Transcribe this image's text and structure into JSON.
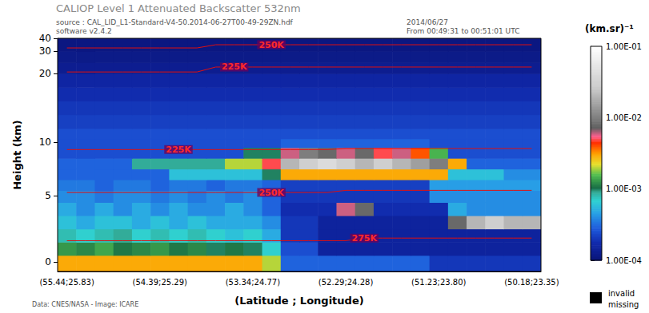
{
  "chart_data": {
    "type": "heatmap",
    "title": "CALIOP Level 1 Attenuated Backscatter 532nm",
    "subtitle": [
      "source : CAL_LID_L1-Standard-V4-50.2014-06-27T00-49-29ZN.hdf",
      "software v2.4.2"
    ],
    "date_text": [
      "2014/06/27",
      "From 00:49:31 to 00:51:01 UTC"
    ],
    "credit": "Data: CNES/NASA - Image: ICARE",
    "x_label": "(Latitude ; Longitude)",
    "y_label": "Height (km)",
    "categories": [
      "(55.44;25.83)",
      null,
      null,
      null,
      null,
      "(54.39;25.29)",
      null,
      null,
      null,
      null,
      "(53.34;24.77)",
      null,
      null,
      null,
      null,
      "(52.29;24.28)",
      null,
      null,
      null,
      null,
      "(51.23;23.80)",
      null,
      null,
      null,
      null,
      "(50.18;23.35)"
    ],
    "ylim": [
      -0.5,
      40
    ],
    "yticks": [
      0,
      5,
      10,
      20,
      30,
      40
    ],
    "y_edges": [
      -0.5,
      0.5,
      1.5,
      2.5,
      3.5,
      4.5,
      5.5,
      6.5,
      7.5,
      8.5,
      9.5,
      10.5,
      12,
      14,
      16,
      18,
      20,
      25,
      30,
      40
    ],
    "cells": [
      [
        0.003,
        0.003,
        0.003,
        0.003,
        0.003,
        0.003,
        0.003,
        0.003,
        0.003,
        0.003,
        0.003,
        0.002,
        0.0003,
        0.0003,
        0.0003,
        0.0003,
        0.0003,
        0.0003,
        0.0003,
        0.0003,
        0.0002,
        0.0002,
        0.0002,
        0.0002,
        0.0002,
        0.0002
      ],
      [
        0.0013,
        0.0012,
        0.0014,
        0.0011,
        0.0012,
        0.0013,
        0.0011,
        0.0012,
        0.001,
        0.0011,
        0.001,
        0.0007,
        0.00025,
        0.00025,
        0.00015,
        0.00015,
        0.00015,
        0.00015,
        0.00015,
        0.00015,
        0.00015,
        0.00015,
        0.00015,
        0.00015,
        0.00015,
        0.00015
      ],
      [
        0.0008,
        0.0007,
        0.0008,
        0.0009,
        0.0007,
        0.0008,
        0.0007,
        0.0008,
        0.0007,
        0.0006,
        0.0007,
        0.0005,
        0.0002,
        0.0002,
        0.00015,
        0.00015,
        0.00015,
        0.00015,
        0.00015,
        0.00015,
        0.00015,
        0.00015,
        0.00015,
        0.00015,
        0.00015,
        0.00015
      ],
      [
        0.0006,
        0.0005,
        0.0006,
        0.0006,
        0.0005,
        0.0006,
        0.0005,
        0.0006,
        0.0005,
        0.0005,
        0.0005,
        0.0004,
        0.0002,
        0.0002,
        0.00015,
        0.00015,
        0.00015,
        0.00015,
        0.00015,
        0.00015,
        0.00015,
        0.008,
        0.02,
        0.03,
        0.02,
        0.02
      ],
      [
        0.0005,
        0.0004,
        0.0005,
        0.0004,
        0.0005,
        0.0004,
        0.0005,
        0.0004,
        0.0004,
        0.0005,
        0.0004,
        0.0003,
        0.00018,
        0.00018,
        0.00018,
        0.006,
        0.008,
        0.00018,
        0.00018,
        0.00018,
        0.00018,
        0.0005,
        0.0004,
        0.0004,
        0.0004,
        0.0004
      ],
      [
        0.0004,
        0.0004,
        0.00035,
        0.0004,
        0.0004,
        0.00035,
        0.0004,
        0.00035,
        0.0004,
        0.00035,
        0.0004,
        0.0003,
        0.0002,
        0.0002,
        0.0002,
        0.0002,
        0.0002,
        0.0002,
        0.0002,
        0.0002,
        0.0004,
        0.0004,
        0.0004,
        0.0004,
        0.0004,
        0.0004
      ],
      [
        0.00035,
        0.00035,
        0.0003,
        0.00035,
        0.00035,
        0.0003,
        0.00035,
        0.00035,
        0.0003,
        0.00035,
        0.00035,
        0.0003,
        0.00022,
        0.00022,
        0.00022,
        0.00022,
        0.00022,
        0.00022,
        0.00022,
        0.00022,
        0.00045,
        0.00045,
        0.00045,
        0.00045,
        0.00045,
        0.00045
      ],
      [
        0.0003,
        0.0003,
        0.0003,
        0.0003,
        0.0003,
        0.0003,
        0.0006,
        0.0006,
        0.0006,
        0.0006,
        0.0006,
        0.001,
        0.003,
        0.003,
        0.003,
        0.003,
        0.003,
        0.003,
        0.003,
        0.003,
        0.003,
        0.0006,
        0.0006,
        0.0006,
        0.0004,
        0.0004
      ],
      [
        0.0003,
        0.0003,
        0.0003,
        0.0003,
        0.0009,
        0.0009,
        0.0009,
        0.0009,
        0.0009,
        0.002,
        0.002,
        0.005,
        0.02,
        0.03,
        0.04,
        0.03,
        0.02,
        0.03,
        0.02,
        0.015,
        0.01,
        0.003,
        0.0003,
        0.0003,
        0.0003,
        0.0003
      ],
      [
        0.00025,
        0.00025,
        0.00025,
        0.00025,
        0.00025,
        0.00025,
        0.00025,
        0.00025,
        0.00025,
        0.00025,
        0.001,
        0.001,
        0.006,
        0.01,
        0.008,
        0.006,
        0.008,
        0.005,
        0.006,
        0.004,
        0.0015,
        0.00025,
        0.00025,
        0.00025,
        0.00025,
        0.00025
      ],
      [
        0.00025,
        0.00025,
        0.00025,
        0.00025,
        0.00025,
        0.00025,
        0.00025,
        0.00025,
        0.00025,
        0.00025,
        0.00025,
        0.00025,
        0.0003,
        0.0003,
        0.0003,
        0.0003,
        0.0003,
        0.0003,
        0.0003,
        0.0003,
        0.00025,
        0.00025,
        0.00025,
        0.00025,
        0.00025,
        0.00025
      ],
      [
        0.00025,
        0.00025,
        0.00025,
        0.00025,
        0.00025,
        0.00025,
        0.00025,
        0.00025,
        0.00025,
        0.00025,
        0.00025,
        0.00025,
        0.00025,
        0.00025,
        0.00025,
        0.00025,
        0.00025,
        0.00025,
        0.00025,
        0.00025,
        0.00025,
        0.00025,
        0.00025,
        0.00025,
        0.00025,
        0.00025
      ],
      [
        0.00022,
        0.00022,
        0.00022,
        0.00022,
        0.00022,
        0.00022,
        0.00022,
        0.00022,
        0.00022,
        0.00022,
        0.00022,
        0.00022,
        0.00022,
        0.00022,
        0.00022,
        0.00022,
        0.00022,
        0.00022,
        0.00022,
        0.00022,
        0.00022,
        0.00022,
        0.00022,
        0.00022,
        0.00022,
        0.00022
      ],
      [
        0.0002,
        0.0002,
        0.0002,
        0.0002,
        0.0002,
        0.0002,
        0.0002,
        0.0002,
        0.0002,
        0.0002,
        0.0002,
        0.0002,
        0.0002,
        0.0002,
        0.0002,
        0.0002,
        0.0002,
        0.0002,
        0.0002,
        0.0002,
        0.0002,
        0.0002,
        0.0002,
        0.0002,
        0.0002,
        0.0002
      ],
      [
        0.00018,
        0.00018,
        0.00018,
        0.00018,
        0.00018,
        0.00018,
        0.00018,
        0.00018,
        0.00018,
        0.00018,
        0.00018,
        0.00018,
        0.00018,
        0.00018,
        0.00018,
        0.00018,
        0.00018,
        0.00018,
        0.00018,
        0.00018,
        0.00018,
        0.00018,
        0.00018,
        0.00018,
        0.00018,
        0.00018
      ],
      [
        0.00016,
        0.00016,
        0.00016,
        0.00016,
        0.00016,
        0.00016,
        0.00016,
        0.00016,
        0.00016,
        0.00016,
        0.00016,
        0.00016,
        0.00016,
        0.00016,
        0.00016,
        0.00016,
        0.00016,
        0.00016,
        0.00016,
        0.00016,
        0.00016,
        0.00016,
        0.00016,
        0.00016,
        0.00016,
        0.00016
      ],
      [
        0.00013,
        0.00013,
        0.00013,
        0.00013,
        0.00013,
        0.00013,
        0.00013,
        0.00013,
        0.00013,
        0.00013,
        0.00013,
        0.00013,
        0.00013,
        0.00013,
        0.00013,
        0.00013,
        0.00013,
        0.00013,
        0.00013,
        0.00013,
        0.00013,
        0.00013,
        0.00013,
        0.00013,
        0.00013,
        0.00013
      ],
      [
        0.00012,
        0.00012,
        0.00012,
        0.00012,
        0.00012,
        0.00012,
        0.00012,
        0.00012,
        0.00012,
        0.00012,
        0.00012,
        0.00012,
        0.00012,
        0.00012,
        0.00012,
        0.00012,
        0.00012,
        0.00012,
        0.00012,
        0.00012,
        0.00012,
        0.00012,
        0.00012,
        0.00012,
        0.00012,
        0.00012
      ],
      [
        0.00011,
        0.00011,
        0.00011,
        0.00011,
        0.00011,
        0.00011,
        0.00011,
        0.00011,
        0.00011,
        0.00011,
        0.00011,
        0.00011,
        0.00011,
        0.00011,
        0.00011,
        0.00011,
        0.00011,
        0.00011,
        0.00011,
        0.00011,
        0.00011,
        0.00011,
        0.00011,
        0.00011,
        0.00011,
        0.00011
      ]
    ],
    "colorbar": {
      "label": "(km.sr)⁻¹",
      "log": true,
      "range": [
        0.0001,
        0.1
      ],
      "ticks": [
        {
          "value": 0.0001,
          "label": "1.00E-04"
        },
        {
          "value": 0.001,
          "label": "1.00E-03"
        },
        {
          "value": 0.01,
          "label": "1.00E-02"
        },
        {
          "value": 0.1,
          "label": "1.00E-01"
        }
      ]
    },
    "missing_label": [
      "invalid",
      "missing"
    ],
    "series": [
      {
        "name": "250K",
        "type": "line",
        "color": "#e01010",
        "values": [
          32.5,
          32.5,
          32.5,
          32.5,
          32.5,
          32.5,
          32.5,
          32.5,
          35,
          35,
          35,
          35,
          35,
          35,
          35,
          35,
          35,
          35,
          35,
          35,
          35,
          35,
          35,
          35,
          35,
          35
        ]
      },
      {
        "name": "225K",
        "type": "line",
        "color": "#e01010",
        "values": [
          20.7,
          20.7,
          20.7,
          20.7,
          20.7,
          20.7,
          20.7,
          20.7,
          22.9,
          22.9,
          22.9,
          22.9,
          22.9,
          22.9,
          22.9,
          22.9,
          22.9,
          22.9,
          22.9,
          22.9,
          22.9,
          22.9,
          22.9,
          22.9,
          22.9,
          22.9
        ]
      },
      {
        "name": "225K",
        "type": "line",
        "color": "#e01010",
        "values": [
          9.3,
          9.3,
          9.3,
          9.3,
          9.3,
          9.3,
          9.3,
          9.3,
          9.3,
          9.3,
          9.3,
          9.3,
          9.3,
          9.3,
          9.3,
          9.4,
          9.4,
          9.4,
          9.4,
          9.4,
          9.4,
          9.4,
          9.4,
          9.4,
          9.4,
          9.4
        ]
      },
      {
        "name": "250K",
        "type": "line",
        "color": "#e01010",
        "values": [
          5.3,
          5.3,
          5.3,
          5.3,
          5.3,
          5.3,
          5.3,
          5.3,
          5.3,
          5.3,
          5.3,
          5.3,
          5.3,
          5.3,
          5.3,
          5.5,
          5.5,
          5.5,
          5.5,
          5.5,
          5.5,
          5.5,
          5.5,
          5.5,
          5.5,
          5.5
        ]
      },
      {
        "name": "275K",
        "type": "line",
        "color": "#e01010",
        "values": [
          1.6,
          1.6,
          1.6,
          1.6,
          1.6,
          1.6,
          1.6,
          1.6,
          1.6,
          1.6,
          1.6,
          1.6,
          1.6,
          1.6,
          1.6,
          1.6,
          1.8,
          1.8,
          1.8,
          1.8,
          1.8,
          1.8,
          1.8,
          1.8,
          1.8,
          1.8
        ]
      }
    ]
  }
}
